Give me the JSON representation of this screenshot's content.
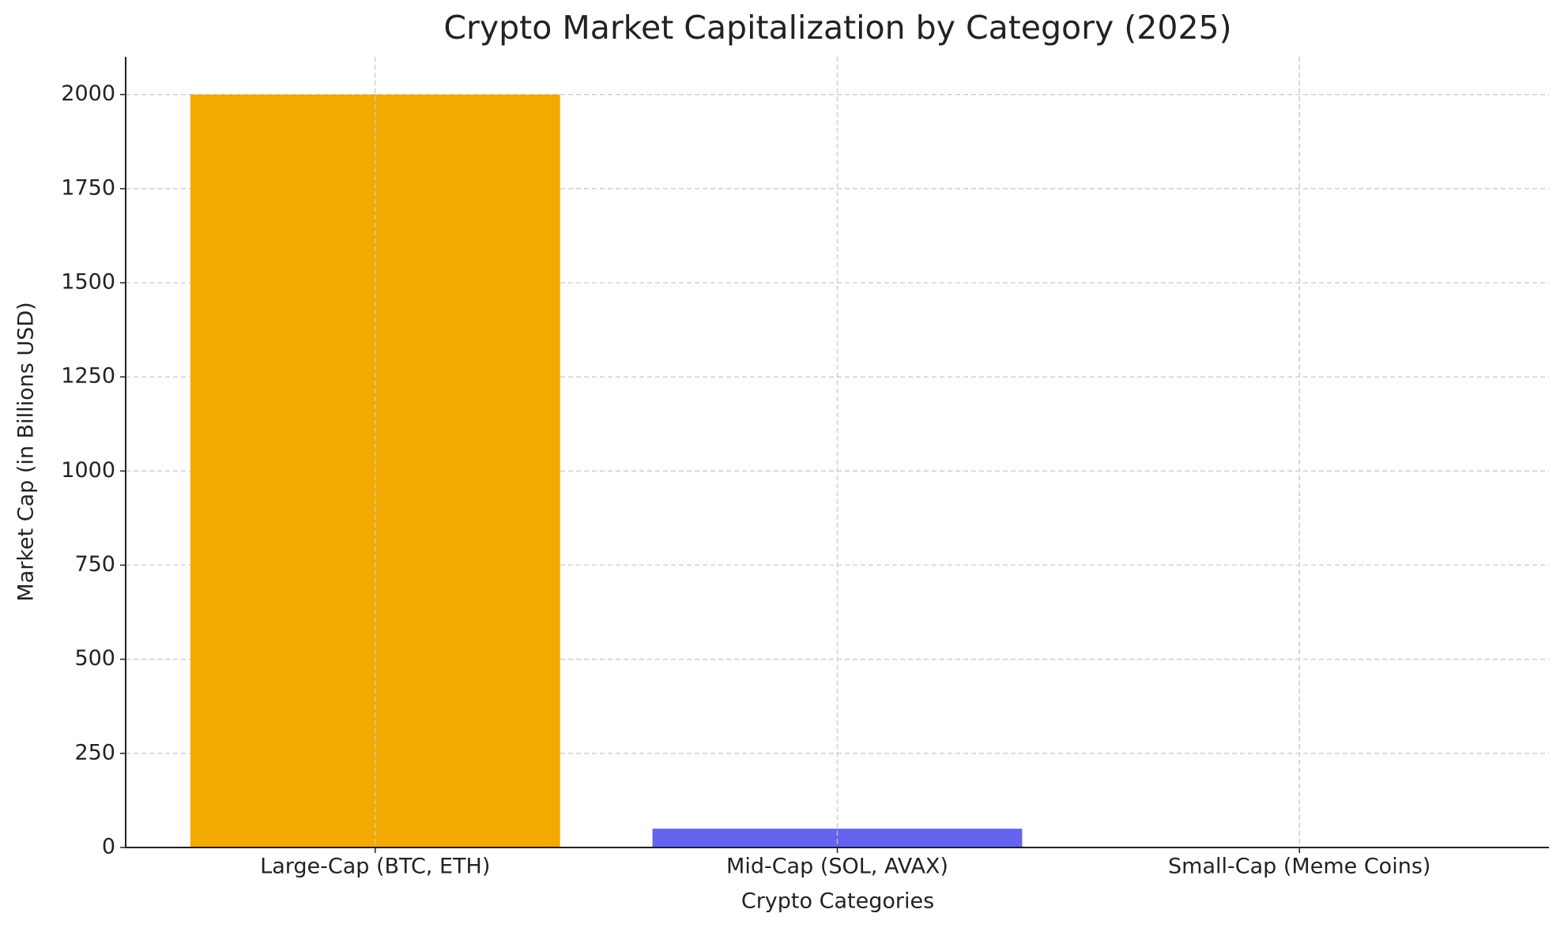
{
  "chart_data": {
    "type": "bar",
    "title": "Crypto Market Capitalization by Category (2025)",
    "x_label": "Crypto Categories",
    "y_label": "Market Cap (in Billions USD)",
    "categories": [
      "Large-Cap (BTC, ETH)",
      "Mid-Cap (SOL, AVAX)",
      "Small-Cap (Meme Coins)"
    ],
    "values": [
      2000,
      50,
      1
    ],
    "colors": [
      "#f2a900",
      "#6464f0",
      "#2ca02c"
    ],
    "ylim": [
      0,
      2100
    ],
    "yticks": [
      0,
      250,
      500,
      750,
      1000,
      1250,
      1500,
      1750,
      2000
    ],
    "grid": true
  }
}
